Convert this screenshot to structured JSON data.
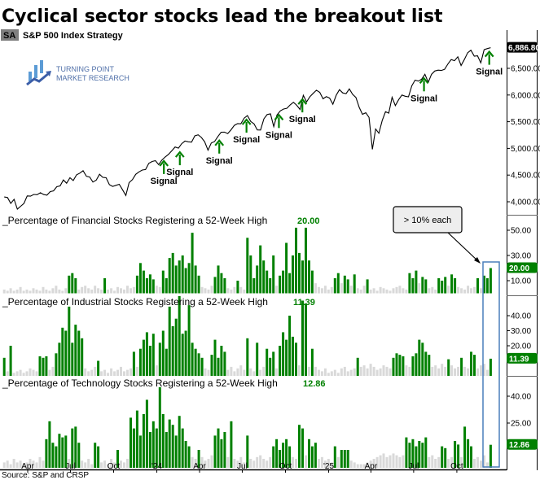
{
  "header": {
    "title": "Cyclical sector stocks lead the breakout list",
    "symbol_badge": "SA",
    "subtitle": "S&P 500 Index  Strategy",
    "logo_line1": "TURNING POINT",
    "logo_line2": "MARKET RESEARCH"
  },
  "colors": {
    "green": "#008000",
    "gray": "#d9d9d9",
    "line": "#000000",
    "highlight_box": "#4a7ebb",
    "logo": "#3b78c9"
  },
  "source": "Source: S&P and CRSP",
  "annotation": "> 10% each",
  "chart_data": [
    {
      "type": "line",
      "name": "S&P 500 Index",
      "y_scale": "linear",
      "ylim": [
        3850,
        6950
      ],
      "yticks": [
        "6,500.00",
        "6,000.00",
        "5,500.00",
        "5,000.00",
        "4,500.00",
        "4,000.00"
      ],
      "ytick_values": [
        6500,
        6000,
        5500,
        5000,
        4500,
        4000
      ],
      "last_value_label": "6,886.80",
      "last_value": 6886.8,
      "start": "2023-02-10",
      "end": "2025-12-12",
      "frequency": "weekly",
      "values": [
        4090,
        4079,
        3970,
        4045,
        3861,
        3916,
        3970,
        4109,
        4105,
        4137,
        4133,
        4169,
        4136,
        4124,
        4191,
        4205,
        4282,
        4298,
        4409,
        4348,
        4450,
        4398,
        4505,
        4536,
        4582,
        4478,
        4464,
        4369,
        4405,
        4515,
        4457,
        4450,
        4320,
        4288,
        4308,
        4327,
        4224,
        4117,
        4358,
        4415,
        4514,
        4559,
        4595,
        4604,
        4719,
        4754,
        4770,
        4697,
        4783,
        4840,
        4891,
        4958,
        5026,
        5005,
        5088,
        5137,
        5124,
        5117,
        5234,
        5254,
        5204,
        5123,
        4967,
        5100,
        5128,
        5223,
        5303,
        5305,
        5278,
        5347,
        5431,
        5465,
        5460,
        5567,
        5615,
        5505,
        5459,
        5346,
        5344,
        5554,
        5634,
        5648,
        5408,
        5626,
        5702,
        5738,
        5751,
        5815,
        5864,
        5808,
        5728,
        5995,
        5870,
        5969,
        6032,
        6090,
        6051,
        5930,
        5970,
        5942,
        5827,
        5997,
        6101,
        6040,
        6026,
        6115,
        6013,
        5955,
        5770,
        5639,
        5667,
        5581,
        4982,
        5363,
        5283,
        5525,
        5687,
        5660,
        5958,
        5802,
        5912,
        6000,
        5977,
        5967,
        6173,
        6279,
        6260,
        6297,
        6389,
        6238,
        6389,
        6450,
        6467,
        6460,
        6482,
        6584,
        6664,
        6644,
        6716,
        6553,
        6664,
        6792,
        6840,
        6729,
        6734,
        6603,
        6849,
        6870,
        6886.8
      ],
      "signal_label": "Signal",
      "signals": [
        "2024-01-16",
        "2024-02-19",
        "2024-05-13",
        "2024-07-10",
        "2024-09-17",
        "2024-11-06",
        "2025-07-23",
        "2025-12-09"
      ]
    },
    {
      "type": "bar",
      "title": "_Percentage of Financial Stocks Registering a 52-Week High",
      "last_value_label": "20.00",
      "yticks": [
        "50.00",
        "30.00",
        "10.00"
      ],
      "ytick_values": [
        50,
        30,
        10
      ],
      "highlight_threshold": 10,
      "start": "2023-02-10",
      "end": "2025-12-12",
      "frequency": "weekly",
      "values": [
        3,
        2,
        4,
        2,
        3,
        5,
        2,
        3,
        2,
        4,
        3,
        2,
        5,
        3,
        2,
        4,
        6,
        3,
        2,
        4,
        14,
        16,
        12,
        3,
        5,
        6,
        4,
        3,
        6,
        4,
        3,
        12,
        3,
        4,
        2,
        5,
        4,
        3,
        6,
        4,
        5,
        14,
        24,
        18,
        12,
        15,
        11,
        6,
        5,
        18,
        12,
        28,
        32,
        22,
        26,
        30,
        20,
        24,
        48,
        22,
        14,
        5,
        4,
        3,
        6,
        13,
        22,
        16,
        12,
        4,
        3,
        5,
        10,
        5,
        3,
        44,
        30,
        12,
        22,
        38,
        26,
        18,
        12,
        30,
        6,
        14,
        18,
        40,
        16,
        30,
        52,
        32,
        26,
        52,
        26,
        18,
        8,
        5,
        4,
        6,
        3,
        5,
        12,
        16,
        8,
        14,
        11,
        6,
        15,
        4,
        3,
        6,
        11,
        3,
        4,
        2,
        5,
        4,
        3,
        2,
        4,
        5,
        6,
        4,
        3,
        16,
        12,
        18,
        8,
        13,
        11,
        4,
        5,
        3,
        12,
        10,
        13,
        6,
        15,
        12,
        5,
        4,
        3,
        6,
        4,
        5,
        12,
        4,
        14,
        12,
        20.0
      ]
    },
    {
      "type": "bar",
      "title": "_Percentage of Industrial Stocks Registering a 52-Week High",
      "last_value_label": "11.39",
      "yticks": [
        "40.00",
        "30.00",
        "20.00"
      ],
      "ytick_values": [
        40,
        30,
        20
      ],
      "highlight_threshold": 10,
      "start": "2023-02-10",
      "end": "2025-12-12",
      "frequency": "weekly",
      "values": [
        12,
        3,
        20,
        2,
        3,
        4,
        2,
        3,
        5,
        4,
        3,
        13,
        12,
        13,
        4,
        6,
        15,
        22,
        32,
        30,
        46,
        22,
        34,
        30,
        25,
        5,
        3,
        4,
        6,
        10,
        3,
        4,
        2,
        5,
        3,
        4,
        6,
        3,
        4,
        5,
        16,
        6,
        18,
        24,
        29,
        20,
        28,
        7,
        22,
        30,
        18,
        46,
        33,
        38,
        53,
        28,
        30,
        47,
        22,
        18,
        15,
        12,
        5,
        4,
        14,
        24,
        12,
        20,
        16,
        4,
        6,
        3,
        5,
        7,
        4,
        25,
        5,
        3,
        22,
        4,
        6,
        18,
        12,
        16,
        5,
        20,
        29,
        24,
        40,
        26,
        22,
        7,
        50,
        48,
        6,
        18,
        6,
        4,
        3,
        5,
        2,
        3,
        4,
        2,
        5,
        6,
        3,
        4,
        5,
        12,
        6,
        7,
        5,
        8,
        6,
        4,
        5,
        7,
        6,
        5,
        12,
        15,
        14,
        13,
        7,
        6,
        13,
        15,
        24,
        22,
        16,
        14,
        6,
        7,
        5,
        8,
        6,
        11,
        7,
        5,
        6,
        12,
        6,
        5,
        16,
        14,
        5,
        7,
        8,
        4,
        11.39
      ]
    },
    {
      "type": "bar",
      "title": "_Percentage of Technology Stocks Registering a 52-Week High",
      "last_value_label": "12.86",
      "yticks": [
        "40.00",
        "25.00"
      ],
      "ytick_values": [
        40,
        25
      ],
      "highlight_threshold": 10,
      "start": "2023-02-10",
      "end": "2025-12-12",
      "frequency": "weekly",
      "values": [
        3,
        4,
        2,
        5,
        3,
        4,
        2,
        3,
        5,
        4,
        3,
        6,
        4,
        16,
        26,
        14,
        12,
        19,
        17,
        18,
        5,
        22,
        23,
        14,
        4,
        3,
        5,
        2,
        14,
        12,
        3,
        4,
        2,
        5,
        3,
        10,
        4,
        3,
        5,
        28,
        22,
        32,
        18,
        30,
        38,
        20,
        26,
        22,
        45,
        30,
        20,
        27,
        24,
        18,
        29,
        22,
        15,
        12,
        6,
        5,
        10,
        6,
        4,
        5,
        7,
        18,
        22,
        16,
        20,
        6,
        26,
        5,
        4,
        6,
        3,
        18,
        5,
        4,
        6,
        7,
        5,
        4,
        6,
        12,
        16,
        10,
        14,
        16,
        12,
        6,
        5,
        24,
        22,
        7,
        16,
        12,
        14,
        5,
        6,
        4,
        5,
        3,
        12,
        6,
        10,
        10,
        10,
        4,
        3,
        2,
        2,
        2,
        3,
        4,
        5,
        6,
        7,
        8,
        6,
        7,
        8,
        7,
        6,
        7,
        17,
        14,
        16,
        12,
        15,
        14,
        17,
        6,
        7,
        5,
        6,
        12,
        11,
        5,
        6,
        15,
        13,
        6,
        23,
        16,
        12,
        5,
        6,
        4,
        7,
        3,
        12.86
      ]
    }
  ],
  "x_axis": {
    "ticks": [
      {
        "label": "Apr",
        "date": "2023-04-01"
      },
      {
        "label": "Jul",
        "date": "2023-07-01"
      },
      {
        "label": "Oct",
        "date": "2023-10-01"
      },
      {
        "label": "'24",
        "date": "2024-01-01"
      },
      {
        "label": "Apr",
        "date": "2024-04-01"
      },
      {
        "label": "Jul",
        "date": "2024-07-01"
      },
      {
        "label": "Oct",
        "date": "2024-10-01"
      },
      {
        "label": "'25",
        "date": "2025-01-01"
      },
      {
        "label": "Apr",
        "date": "2025-04-01"
      },
      {
        "label": "Jul",
        "date": "2025-07-01"
      },
      {
        "label": "Oct",
        "date": "2025-10-01"
      }
    ]
  }
}
